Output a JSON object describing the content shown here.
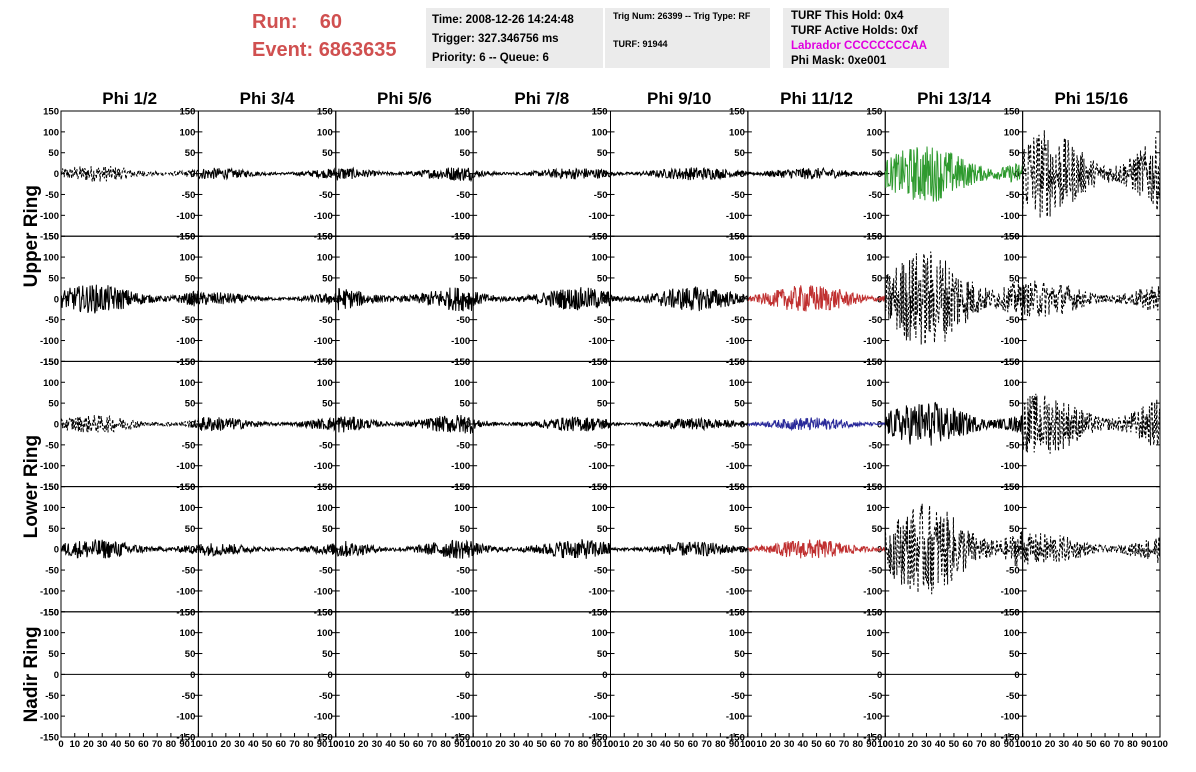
{
  "header": {
    "run_label": "Run:",
    "run_value": "60",
    "event_label": "Event:",
    "event_value": "6863635"
  },
  "info_box_1": {
    "time": "Time: 2008-12-26 14:24:48",
    "trigger": "Trigger: 327.346756 ms",
    "priority": "Priority: 6 -- Queue: 6"
  },
  "info_box_2": {
    "trig": "Trig Num: 26399 -- Trig Type: RF",
    "turf": "TURF: 91944"
  },
  "info_box_3": {
    "this_hold": "TURF This Hold: 0x4",
    "active_holds": "TURF Active Holds: 0xf",
    "labrador": "Labrador CCCCCCCCAA",
    "phi_mask": "Phi Mask: 0xe001"
  },
  "chart_data": {
    "type": "line",
    "columns": [
      "Phi 1/2",
      "Phi 3/4",
      "Phi 5/6",
      "Phi 7/8",
      "Phi 9/10",
      "Phi 11/12",
      "Phi 13/14",
      "Phi 15/16"
    ],
    "rows": [
      "Upper Ring",
      "Upper Ring",
      "Lower Ring",
      "Lower Ring",
      "Nadir Ring"
    ],
    "ring_labels": [
      "Upper Ring",
      "Lower Ring",
      "Nadir Ring"
    ],
    "ylim": [
      -150,
      150
    ],
    "xlim": [
      0,
      100
    ],
    "y_ticks": [
      150,
      100,
      50,
      0,
      -50,
      -100,
      -150
    ],
    "x_ticks": [
      0,
      10,
      20,
      30,
      40,
      50,
      60,
      70,
      80,
      90,
      100
    ],
    "panels": [
      [
        {
          "amp": 20,
          "style": "dashed",
          "color": "#000000"
        },
        {
          "amp": 14,
          "style": "solid",
          "color": "#000000"
        },
        {
          "amp": 18,
          "style": "solid",
          "color": "#000000"
        },
        {
          "amp": 14,
          "style": "solid",
          "color": "#000000"
        },
        {
          "amp": 16,
          "style": "solid",
          "color": "#000000"
        },
        {
          "amp": 14,
          "style": "solid",
          "color": "#000000"
        },
        {
          "amp": 70,
          "style": "solid",
          "color": "#2e9a2e"
        },
        {
          "amp": 110,
          "style": "dashed",
          "color": "#000000"
        }
      ],
      [
        {
          "amp": 35,
          "style": "solid",
          "color": "#000000"
        },
        {
          "amp": 16,
          "style": "solid",
          "color": "#000000"
        },
        {
          "amp": 30,
          "style": "solid",
          "color": "#000000"
        },
        {
          "amp": 28,
          "style": "solid",
          "color": "#000000"
        },
        {
          "amp": 30,
          "style": "solid",
          "color": "#000000"
        },
        {
          "amp": 34,
          "style": "solid",
          "color": "#c03030"
        },
        {
          "amp": 120,
          "style": "dashed",
          "color": "#000000"
        },
        {
          "amp": 45,
          "style": "dashed",
          "color": "#000000"
        }
      ],
      [
        {
          "amp": 22,
          "style": "dashed",
          "color": "#000000"
        },
        {
          "amp": 18,
          "style": "solid",
          "color": "#000000"
        },
        {
          "amp": 24,
          "style": "solid",
          "color": "#000000"
        },
        {
          "amp": 18,
          "style": "solid",
          "color": "#000000"
        },
        {
          "amp": 14,
          "style": "solid",
          "color": "#000000"
        },
        {
          "amp": 16,
          "style": "solid",
          "color": "#2a2a9a"
        },
        {
          "amp": 55,
          "style": "solid",
          "color": "#000000"
        },
        {
          "amp": 75,
          "style": "dashed",
          "color": "#000000"
        }
      ],
      [
        {
          "amp": 24,
          "style": "solid",
          "color": "#000000"
        },
        {
          "amp": 16,
          "style": "solid",
          "color": "#000000"
        },
        {
          "amp": 24,
          "style": "solid",
          "color": "#000000"
        },
        {
          "amp": 24,
          "style": "solid",
          "color": "#000000"
        },
        {
          "amp": 18,
          "style": "solid",
          "color": "#000000"
        },
        {
          "amp": 24,
          "style": "solid",
          "color": "#c03030"
        },
        {
          "amp": 110,
          "style": "dashed",
          "color": "#000000"
        },
        {
          "amp": 40,
          "style": "dashed",
          "color": "#000000"
        }
      ],
      [
        {
          "amp": 0,
          "style": "solid",
          "color": "#000000"
        },
        {
          "amp": 0,
          "style": "solid",
          "color": "#000000"
        },
        {
          "amp": 0,
          "style": "solid",
          "color": "#000000"
        },
        {
          "amp": 0,
          "style": "solid",
          "color": "#000000"
        },
        {
          "amp": 0,
          "style": "solid",
          "color": "#000000"
        },
        {
          "amp": 0,
          "style": "solid",
          "color": "#000000"
        },
        {
          "amp": 0,
          "style": "solid",
          "color": "#000000"
        },
        {
          "amp": null,
          "style": "none",
          "color": "#000000"
        }
      ]
    ]
  }
}
